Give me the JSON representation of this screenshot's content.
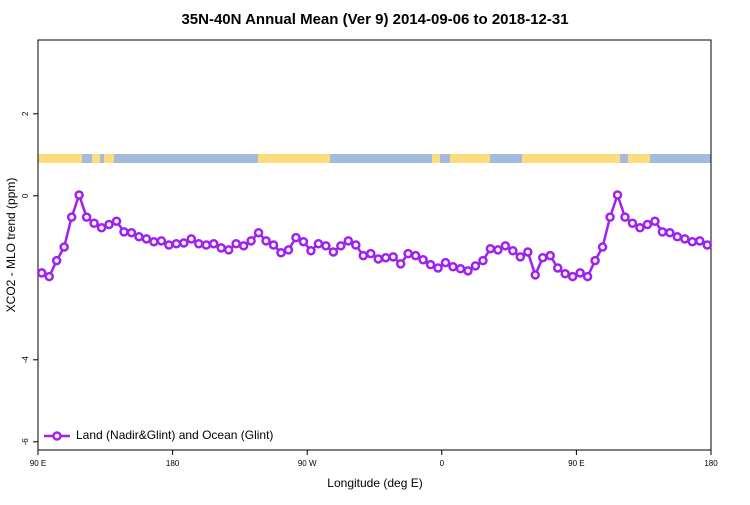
{
  "chart_data": {
    "type": "line",
    "title": "35N-40N Annual Mean (Ver 9)   2014-09-06 to 2018-12-31",
    "x_label": "Longitude (deg E)",
    "y_label": "XCO2 - MLO trend (ppm)",
    "x": [
      92.5,
      97.5,
      102.5,
      107.5,
      112.5,
      117.5,
      122.5,
      127.5,
      132.5,
      137.5,
      142.5,
      147.5,
      152.5,
      157.5,
      162.5,
      167.5,
      172.5,
      177.5,
      182.5,
      187.5,
      192.5,
      197.5,
      202.5,
      207.5,
      212.5,
      217.5,
      222.5,
      227.5,
      232.5,
      237.5,
      242.5,
      247.5,
      252.5,
      257.5,
      262.5,
      267.5,
      272.5,
      277.5,
      282.5,
      287.5,
      292.5,
      297.5,
      302.5,
      307.5,
      312.5,
      317.5,
      322.5,
      327.5,
      332.5,
      337.5,
      342.5,
      347.5,
      352.5,
      357.5,
      362.5,
      367.5,
      372.5,
      377.5,
      382.5,
      387.5,
      392.5,
      397.5,
      402.5,
      407.5,
      412.5,
      417.5,
      422.5,
      427.5,
      432.5,
      437.5,
      442.5,
      447.5,
      452.5,
      457.5,
      462.5,
      467.5,
      472.5,
      477.5,
      482.5,
      487.5,
      492.5,
      497.5,
      502.5,
      507.5,
      512.5,
      517.5,
      522.5,
      527.5,
      532.5,
      537.5
    ],
    "series": [
      {
        "name": "Land (Nadir&Glint) and Ocean (Glint)",
        "color": "#a020f0",
        "values": [
          -1.88,
          -1.97,
          -1.58,
          -1.25,
          -0.52,
          0.02,
          -0.52,
          -0.67,
          -0.78,
          -0.7,
          -0.62,
          -0.88,
          -0.9,
          -1.0,
          -1.05,
          -1.12,
          -1.1,
          -1.2,
          -1.17,
          -1.15,
          -1.05,
          -1.17,
          -1.2,
          -1.17,
          -1.27,
          -1.32,
          -1.17,
          -1.22,
          -1.1,
          -0.9,
          -1.1,
          -1.2,
          -1.39,
          -1.32,
          -1.02,
          -1.12,
          -1.34,
          -1.17,
          -1.22,
          -1.37,
          -1.22,
          -1.1,
          -1.2,
          -1.46,
          -1.41,
          -1.54,
          -1.51,
          -1.49,
          -1.66,
          -1.41,
          -1.46,
          -1.56,
          -1.68,
          -1.76,
          -1.63,
          -1.73,
          -1.78,
          -1.83,
          -1.71,
          -1.58,
          -1.29,
          -1.32,
          -1.22,
          -1.34,
          -1.49,
          -1.37,
          -1.93,
          -1.51,
          -1.46,
          -1.76,
          -1.9,
          -1.97,
          -1.88,
          -1.97,
          -1.58,
          -1.25,
          -0.52,
          0.02,
          -0.52,
          -0.67,
          -0.78,
          -0.7,
          -0.62,
          -0.88,
          -0.9,
          -1.0,
          -1.05,
          -1.12,
          -1.1,
          -1.2
        ]
      }
    ],
    "xlim": [
      90,
      540
    ],
    "xticks": [
      {
        "value": 90,
        "label": "90 E"
      },
      {
        "value": 180,
        "label": "180"
      },
      {
        "value": 270,
        "label": "90 W"
      },
      {
        "value": 360,
        "label": "0"
      },
      {
        "value": 450,
        "label": "90 E"
      },
      {
        "value": 540,
        "label": "180"
      }
    ],
    "ylim": [
      -6.2,
      3.8
    ],
    "yticks": [
      -6,
      -4,
      0,
      2
    ],
    "legend": "bottom-left"
  }
}
